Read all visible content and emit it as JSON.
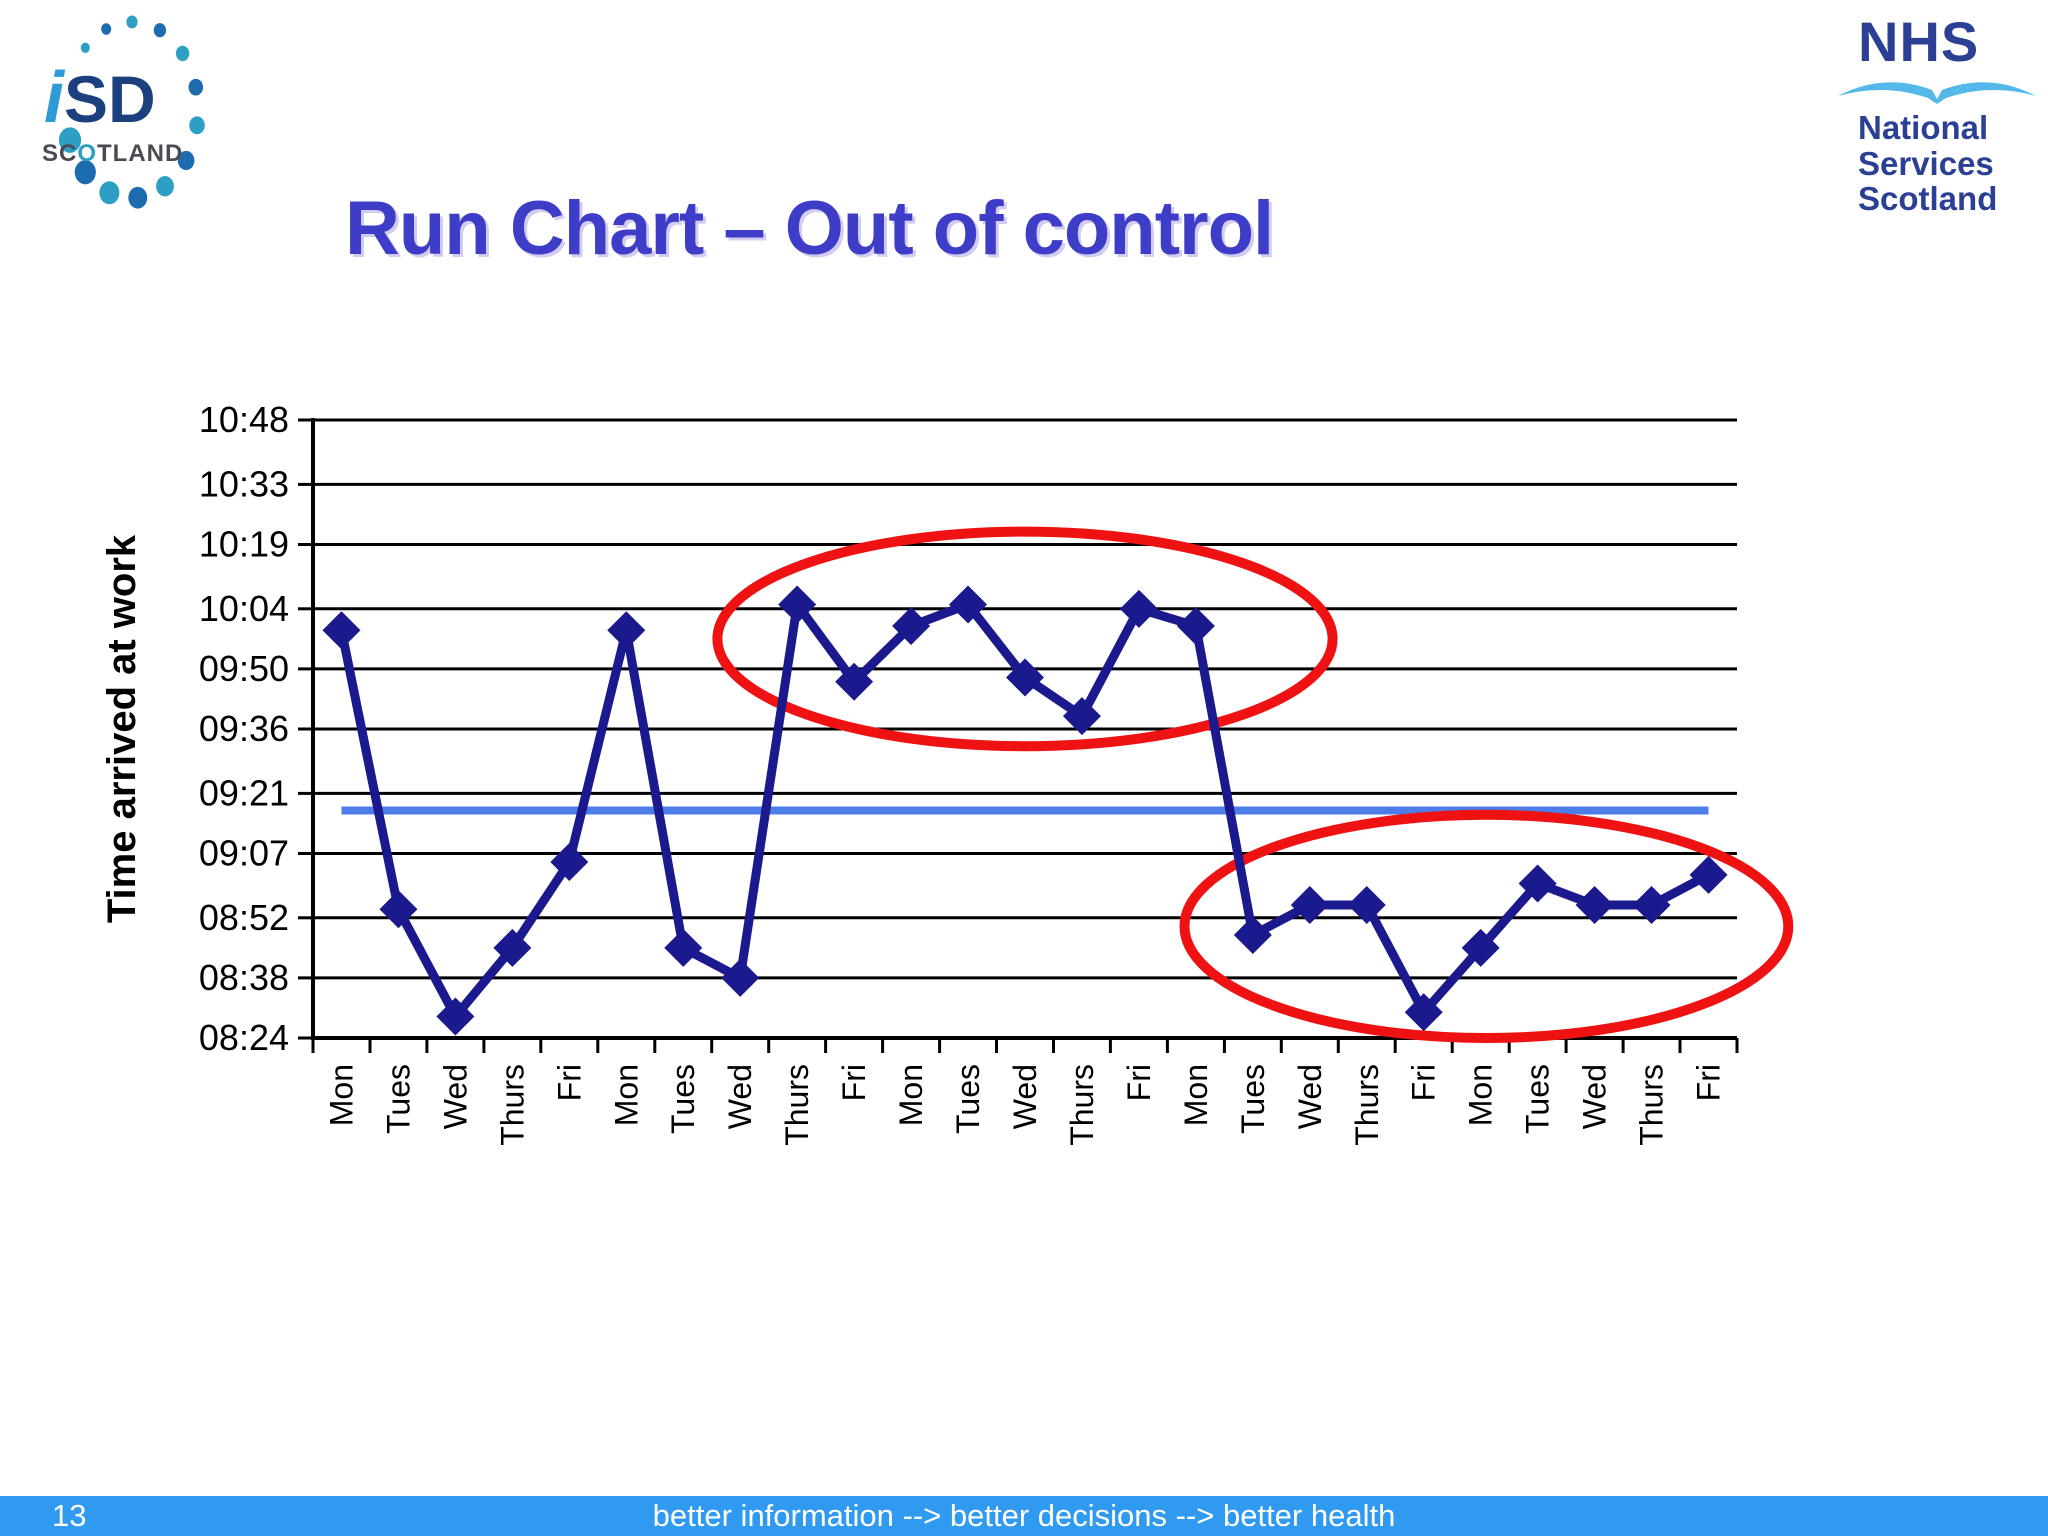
{
  "header": {
    "title": "Run Chart – Out of control",
    "title_color": "#3d3dc8"
  },
  "logos": {
    "isd": {
      "i": "i",
      "sd": "SD",
      "scotland_parts": [
        "SC",
        "O",
        "TLAND"
      ],
      "i_color": "#2e9bd6",
      "sd_color": "#1c3f7d",
      "dot_teal": "#2d9fc4",
      "dot_blue": "#1e6cb0"
    },
    "nhs": {
      "acronym": "NHS",
      "lines": [
        "National",
        "Services",
        "Scotland"
      ],
      "text_color": "#2b3f94",
      "swoosh_color": "#54b9e9"
    }
  },
  "chart_data": {
    "type": "line",
    "title": "",
    "xlabel": "",
    "ylabel": "Time arrived at work",
    "categories": [
      "Mon",
      "Tues",
      "Wed",
      "Thurs",
      "Fri",
      "Mon",
      "Tues",
      "Wed",
      "Thurs",
      "Fri",
      "Mon",
      "Tues",
      "Wed",
      "Thurs",
      "Fri",
      "Mon",
      "Tues",
      "Wed",
      "Thurs",
      "Fri",
      "Mon",
      "Tues",
      "Wed",
      "Thurs",
      "Fri"
    ],
    "series": [
      {
        "name": "Time arrived at work",
        "values": [
          "09:59",
          "08:54",
          "08:29",
          "08:45",
          "09:05",
          "09:59",
          "08:45",
          "08:38",
          "10:05",
          "09:47",
          "10:00",
          "10:05",
          "09:48",
          "09:39",
          "10:04",
          "10:00",
          "08:48",
          "08:55",
          "08:55",
          "08:30",
          "08:45",
          "09:00",
          "08:55",
          "08:55",
          "09:02"
        ]
      }
    ],
    "y_ticks": [
      "10:48",
      "10:33",
      "10:19",
      "10:04",
      "09:50",
      "09:36",
      "09:21",
      "09:07",
      "08:52",
      "08:38",
      "08:24"
    ],
    "ylim": [
      "08:24",
      "10:48"
    ],
    "grid": "horizontal",
    "legend": "none",
    "line_color": "#1a1a8e",
    "marker": "diamond",
    "center_line": {
      "value": "09:17",
      "color": "#4d7de8"
    },
    "annotations": [
      {
        "type": "ellipse",
        "label": "high cluster",
        "color": "#ee1212",
        "center_category_index": 12,
        "center_time": "09:57",
        "radius_categories": 5.4,
        "radius_minutes": 25
      },
      {
        "type": "ellipse",
        "label": "low cluster",
        "color": "#ee1212",
        "center_category_index": 20.1,
        "center_time": "08:50",
        "radius_categories": 5.3,
        "radius_minutes": 26
      }
    ]
  },
  "footer": {
    "page_number": "13",
    "text": "better information --> better decisions --> better health",
    "bar_color": "#2f9af0",
    "text_color": "#ffffff"
  }
}
